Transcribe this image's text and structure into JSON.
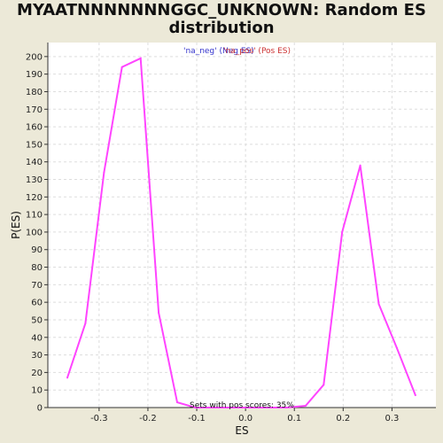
{
  "chart_data": {
    "type": "line",
    "title_line1": "MYAATNNNNNNNGGC_UNKNOWN: Random ES",
    "title_line2": "distribution",
    "xlabel": "ES",
    "ylabel": "P(ES)",
    "xlim": [
      -0.405,
      0.39
    ],
    "ylim": [
      0,
      208
    ],
    "x_ticks": [
      -0.3,
      -0.2,
      -0.1,
      0.0,
      0.1,
      0.2,
      0.3
    ],
    "x_tick_labels": [
      "-0.3",
      "-0.2",
      "-0.1",
      "0.0",
      "0.1",
      "0.2",
      "0.3"
    ],
    "y_ticks": [
      0,
      10,
      20,
      30,
      40,
      50,
      60,
      70,
      80,
      90,
      100,
      110,
      120,
      130,
      140,
      150,
      160,
      170,
      180,
      190,
      200
    ],
    "y_tick_labels": [
      "0",
      "10",
      "20",
      "30",
      "40",
      "50",
      "60",
      "70",
      "80",
      "90",
      "100",
      "110",
      "120",
      "130",
      "140",
      "150",
      "160",
      "170",
      "180",
      "190",
      "200"
    ],
    "grid": true,
    "legend": {
      "placement": "top-center",
      "neg_label": "'na_neg' (Neg ES)",
      "pos_label": "'na_pos' (Pos ES)"
    },
    "annotation": "Sets with pos scores: 35%",
    "series": [
      {
        "name": "ES distribution",
        "color": "#ff44ff",
        "x": [
          -0.365,
          -0.328,
          -0.29,
          -0.253,
          -0.215,
          -0.178,
          -0.14,
          -0.103,
          -0.065,
          -0.028,
          0.01,
          0.048,
          0.085,
          0.123,
          0.16,
          0.198,
          0.235,
          0.273,
          0.31,
          0.348
        ],
        "y": [
          17,
          48,
          134,
          194,
          199,
          54,
          3,
          0,
          0,
          0,
          0,
          0,
          0,
          1,
          13,
          100,
          138,
          59,
          34,
          7
        ]
      }
    ]
  }
}
